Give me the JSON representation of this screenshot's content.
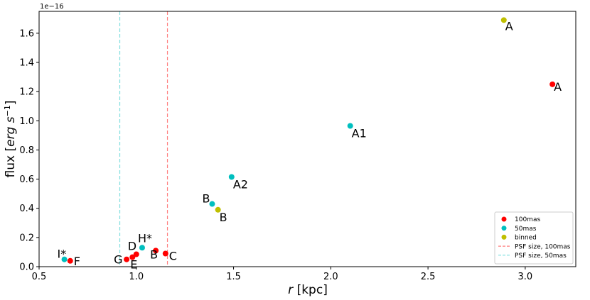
{
  "chart_data": {
    "type": "scatter",
    "xlabel_italic": "r",
    "xlabel_rest": " [kpc]",
    "ylabel_prefix": "flux [",
    "ylabel_unit_italic": "erg s",
    "ylabel_exp": "−1",
    "ylabel_suffix": "]",
    "y_offset_label": "1e−16",
    "xlim": [
      0.5,
      3.26
    ],
    "ylim": [
      0.0,
      1.75
    ],
    "xticks": [
      0.5,
      1.0,
      1.5,
      2.0,
      2.5,
      3.0
    ],
    "xtick_labels": [
      "0.5",
      "1.0",
      "1.5",
      "2.0",
      "2.5",
      "3.0"
    ],
    "yticks": [
      0.0,
      0.2,
      0.4,
      0.6,
      0.8,
      1.0,
      1.2,
      1.4,
      1.6
    ],
    "ytick_labels": [
      "0.0",
      "0.2",
      "0.4",
      "0.6",
      "0.8",
      "1.0",
      "1.2",
      "1.4",
      "1.6"
    ],
    "series": [
      {
        "name": "100mas",
        "color": "#ff0000",
        "points": [
          {
            "x": 3.14,
            "y": 1.25,
            "label": "A"
          },
          {
            "x": 1.1,
            "y": 0.11,
            "label": "B"
          },
          {
            "x": 1.15,
            "y": 0.09,
            "label": "C"
          },
          {
            "x": 1.0,
            "y": 0.085,
            "label": "D"
          },
          {
            "x": 0.98,
            "y": 0.065,
            "label": "E"
          },
          {
            "x": 0.66,
            "y": 0.04,
            "label": "F"
          },
          {
            "x": 0.95,
            "y": 0.05,
            "label": "G"
          }
        ]
      },
      {
        "name": "50mas",
        "color": "#00bfbf",
        "points": [
          {
            "x": 2.1,
            "y": 0.965,
            "label": "A1"
          },
          {
            "x": 1.49,
            "y": 0.615,
            "label": "A2"
          },
          {
            "x": 1.39,
            "y": 0.43,
            "label": "B"
          },
          {
            "x": 1.03,
            "y": 0.13,
            "label": "H*"
          },
          {
            "x": 0.63,
            "y": 0.05,
            "label": "I*"
          }
        ]
      },
      {
        "name": "binned",
        "color": "#bfbf00",
        "points": [
          {
            "x": 2.89,
            "y": 1.69,
            "label": "A"
          },
          {
            "x": 1.42,
            "y": 0.39,
            "label": "B"
          }
        ]
      }
    ],
    "vlines": [
      {
        "name": "PSF size, 100mas",
        "x": 1.16,
        "color": "#ff7f7f"
      },
      {
        "name": "PSF size, 50mas",
        "x": 0.915,
        "color": "#7fdfdf"
      }
    ],
    "legend": {
      "position": "lower right"
    },
    "grid": false
  }
}
